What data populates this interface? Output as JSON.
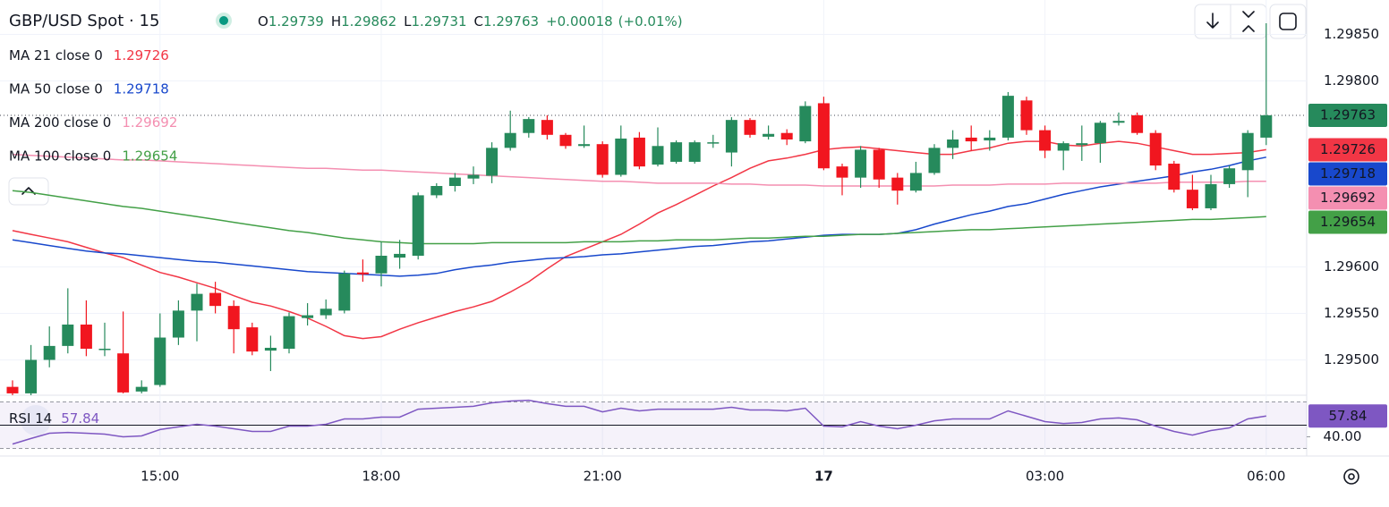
{
  "chart_data": {
    "type": "candlestick",
    "title": "GBP/USD Spot · 15",
    "ohlc_labels": [
      "O",
      "H",
      "L",
      "C"
    ],
    "change": "+0.00018",
    "change_pct": "(+0.01%)",
    "up_color": "#268a5c",
    "down_color": "#f1161f",
    "grid": true,
    "categories": [
      null,
      null,
      null,
      null,
      null,
      null,
      null,
      null,
      "15:00",
      null,
      null,
      null,
      null,
      null,
      null,
      null,
      null,
      null,
      null,
      null,
      "18:00",
      null,
      null,
      null,
      null,
      null,
      null,
      null,
      null,
      null,
      null,
      null,
      "21:00",
      null,
      null,
      null,
      null,
      null,
      null,
      null,
      null,
      null,
      null,
      null,
      "17",
      null,
      null,
      null,
      null,
      null,
      null,
      null,
      null,
      null,
      null,
      null,
      "03:00",
      null,
      null,
      null,
      null,
      null,
      null,
      null,
      null,
      null,
      null,
      null,
      "06:00"
    ],
    "open": [
      1.29471,
      1.29464,
      1.295,
      1.29515,
      1.29538,
      1.29512,
      1.29507,
      1.29466,
      1.29473,
      1.29524,
      1.29553,
      1.29572,
      1.29558,
      1.29535,
      1.2951,
      1.29512,
      1.29545,
      1.29548,
      1.29553,
      1.29594,
      1.29593,
      1.2961,
      1.29612,
      1.29677,
      1.29687,
      1.29695,
      1.29698,
      1.29728,
      1.29744,
      1.29758,
      1.29742,
      1.2973,
      1.29732,
      1.29699,
      1.29739,
      1.2971,
      1.29713,
      1.29713,
      1.29733,
      1.29723,
      1.29758,
      1.2974,
      1.29744,
      1.29735,
      1.29776,
      1.29708,
      1.29696,
      1.29726,
      1.29696,
      1.29682,
      1.29701,
      1.29728,
      1.29739,
      1.29736,
      1.29739,
      1.29779,
      1.29747,
      1.29725,
      1.29731,
      1.29733,
      1.29755,
      1.29763,
      1.29744,
      1.29711,
      1.29683,
      1.29663,
      1.29689,
      1.29704,
      1.29739
    ],
    "high": [
      1.29478,
      1.29516,
      1.29536,
      1.29577,
      1.29564,
      1.2954,
      1.29552,
      1.29478,
      1.2955,
      1.29564,
      1.29582,
      1.29584,
      1.29564,
      1.2954,
      1.29526,
      1.29551,
      1.29561,
      1.29565,
      1.29596,
      1.29608,
      1.29627,
      1.29629,
      1.2968,
      1.2969,
      1.29701,
      1.29708,
      1.29734,
      1.29768,
      1.29761,
      1.29763,
      1.29744,
      1.29752,
      1.29735,
      1.29752,
      1.29745,
      1.2975,
      1.29736,
      1.29736,
      1.29742,
      1.29761,
      1.2976,
      1.29752,
      1.29748,
      1.29778,
      1.29783,
      1.29711,
      1.2973,
      1.29728,
      1.29701,
      1.29713,
      1.29732,
      1.29747,
      1.29752,
      1.29747,
      1.29788,
      1.29783,
      1.29752,
      1.29735,
      1.29752,
      1.29757,
      1.29766,
      1.29766,
      1.29747,
      1.29714,
      1.29699,
      1.29699,
      1.29709,
      1.29747,
      1.29862
    ],
    "low": [
      1.29462,
      1.29462,
      1.29492,
      1.29507,
      1.29504,
      1.29504,
      1.29464,
      1.29464,
      1.29471,
      1.29516,
      1.2952,
      1.2955,
      1.29507,
      1.29505,
      1.29488,
      1.29507,
      1.29537,
      1.29544,
      1.2955,
      1.29584,
      1.29579,
      1.29598,
      1.29608,
      1.29674,
      1.29681,
      1.29689,
      1.2969,
      1.29725,
      1.29739,
      1.29737,
      1.29727,
      1.29728,
      1.29696,
      1.29697,
      1.29705,
      1.29708,
      1.29711,
      1.29711,
      1.29728,
      1.29708,
      1.29739,
      1.29737,
      1.29731,
      1.29733,
      1.29704,
      1.29677,
      1.29685,
      1.29685,
      1.29667,
      1.2968,
      1.29699,
      1.29716,
      1.29725,
      1.29725,
      1.29736,
      1.29742,
      1.29717,
      1.29704,
      1.29714,
      1.29712,
      1.29752,
      1.29742,
      1.29704,
      1.2968,
      1.29661,
      1.29661,
      1.29685,
      1.29675,
      1.29731
    ],
    "close": [
      1.29464,
      1.295,
      1.29515,
      1.29538,
      1.29512,
      1.29512,
      1.29465,
      1.29471,
      1.29524,
      1.29553,
      1.29571,
      1.29558,
      1.29533,
      1.29509,
      1.29513,
      1.29547,
      1.29548,
      1.29555,
      1.29593,
      1.29592,
      1.29612,
      1.29614,
      1.29677,
      1.29687,
      1.29696,
      1.29699,
      1.29728,
      1.29744,
      1.29759,
      1.29742,
      1.2973,
      1.29732,
      1.29699,
      1.29738,
      1.29708,
      1.2973,
      1.29734,
      1.29734,
      1.29734,
      1.29758,
      1.29742,
      1.29743,
      1.29737,
      1.29773,
      1.29706,
      1.29696,
      1.29726,
      1.29694,
      1.29682,
      1.29701,
      1.29728,
      1.29737,
      1.29735,
      1.29739,
      1.29784,
      1.29747,
      1.29725,
      1.29733,
      1.29733,
      1.29755,
      1.29757,
      1.29744,
      1.29709,
      1.29683,
      1.29663,
      1.29689,
      1.29706,
      1.29744,
      1.29763
    ],
    "series": [
      {
        "name": "MA 21 close 0",
        "color": "#f23645",
        "values": [
          1.29639,
          1.29635,
          1.29631,
          1.29627,
          1.29621,
          1.29615,
          1.2961,
          1.29602,
          1.29594,
          1.29589,
          1.29583,
          1.29577,
          1.29569,
          1.29562,
          1.29558,
          1.29552,
          1.29545,
          1.29536,
          1.29526,
          1.29523,
          1.29525,
          1.29533,
          1.2954,
          1.29546,
          1.29552,
          1.29557,
          1.29563,
          1.29573,
          1.29584,
          1.29598,
          1.29611,
          1.29619,
          1.29627,
          1.29635,
          1.29646,
          1.29658,
          1.29667,
          1.29677,
          1.29687,
          1.29696,
          1.29706,
          1.29714,
          1.29717,
          1.29721,
          1.29726,
          1.29728,
          1.29729,
          1.29727,
          1.29725,
          1.29723,
          1.29721,
          1.29721,
          1.29725,
          1.29728,
          1.29733,
          1.29735,
          1.29735,
          1.29731,
          1.2973,
          1.29733,
          1.29735,
          1.29733,
          1.29729,
          1.29725,
          1.29721,
          1.29721,
          1.29722,
          1.29723,
          1.29726
        ]
      },
      {
        "name": "MA 50 close 0",
        "color": "#1848cc",
        "values": [
          1.29629,
          1.29626,
          1.29623,
          1.2962,
          1.29617,
          1.29615,
          1.29614,
          1.29612,
          1.2961,
          1.29608,
          1.29606,
          1.29605,
          1.29603,
          1.29601,
          1.29599,
          1.29597,
          1.29595,
          1.29594,
          1.29593,
          1.29592,
          1.29591,
          1.2959,
          1.29591,
          1.29593,
          1.29597,
          1.296,
          1.29602,
          1.29605,
          1.29607,
          1.29609,
          1.2961,
          1.29611,
          1.29613,
          1.29614,
          1.29616,
          1.29618,
          1.2962,
          1.29622,
          1.29623,
          1.29625,
          1.29627,
          1.29628,
          1.2963,
          1.29632,
          1.29634,
          1.29635,
          1.29635,
          1.29635,
          1.29636,
          1.2964,
          1.29646,
          1.29651,
          1.29656,
          1.2966,
          1.29665,
          1.29668,
          1.29673,
          1.29678,
          1.29682,
          1.29686,
          1.29689,
          1.29692,
          1.29695,
          1.29698,
          1.29702,
          1.29705,
          1.29709,
          1.29714,
          1.29718
        ]
      },
      {
        "name": "MA 200 close 0",
        "color": "#f48fb1",
        "values": [
          1.29721,
          1.2972,
          1.29719,
          1.29718,
          1.29717,
          1.29716,
          1.29715,
          1.29715,
          1.29714,
          1.29713,
          1.29712,
          1.29711,
          1.2971,
          1.29709,
          1.29708,
          1.29707,
          1.29706,
          1.29706,
          1.29705,
          1.29704,
          1.29704,
          1.29703,
          1.29702,
          1.29701,
          1.297,
          1.29699,
          1.29698,
          1.29697,
          1.29696,
          1.29695,
          1.29694,
          1.29693,
          1.29692,
          1.29692,
          1.29691,
          1.2969,
          1.2969,
          1.2969,
          1.2969,
          1.29689,
          1.29689,
          1.29688,
          1.29688,
          1.29688,
          1.29687,
          1.29687,
          1.29687,
          1.29687,
          1.29687,
          1.29687,
          1.29687,
          1.29688,
          1.29688,
          1.29688,
          1.29689,
          1.29689,
          1.29689,
          1.2969,
          1.2969,
          1.2969,
          1.2969,
          1.2969,
          1.2969,
          1.29691,
          1.29691,
          1.29691,
          1.29691,
          1.29692,
          1.29692
        ]
      },
      {
        "name": "MA 100 close 0",
        "color": "#43a047",
        "values": [
          1.29682,
          1.2968,
          1.29677,
          1.29674,
          1.29671,
          1.29668,
          1.29665,
          1.29663,
          1.2966,
          1.29657,
          1.29654,
          1.29651,
          1.29648,
          1.29645,
          1.29642,
          1.29639,
          1.29637,
          1.29634,
          1.29631,
          1.29629,
          1.29627,
          1.29626,
          1.29625,
          1.29625,
          1.29625,
          1.29625,
          1.29626,
          1.29626,
          1.29626,
          1.29626,
          1.29626,
          1.29627,
          1.29627,
          1.29627,
          1.29628,
          1.29628,
          1.29629,
          1.29629,
          1.29629,
          1.2963,
          1.29631,
          1.29631,
          1.29632,
          1.29633,
          1.29633,
          1.29634,
          1.29635,
          1.29635,
          1.29636,
          1.29637,
          1.29638,
          1.29639,
          1.2964,
          1.2964,
          1.29641,
          1.29642,
          1.29643,
          1.29644,
          1.29645,
          1.29646,
          1.29647,
          1.29648,
          1.29649,
          1.2965,
          1.29651,
          1.29651,
          1.29652,
          1.29653,
          1.29654
        ]
      }
    ],
    "ylim": [
      1.29462,
      1.29887
    ],
    "yticks": [
      {
        "value": 1.2985,
        "label": "1.29850"
      },
      {
        "value": 1.298,
        "label": "1.29800"
      },
      {
        "value": 1.296,
        "label": "1.29600"
      },
      {
        "value": 1.2955,
        "label": "1.29550"
      },
      {
        "value": 1.295,
        "label": "1.29500"
      }
    ],
    "rsi": {
      "name": "RSI 14",
      "color": "#7e57c2",
      "values": [
        33.8,
        38.5,
        43.1,
        43.8,
        43.1,
        42.3,
        40,
        40.8,
        46.2,
        48.5,
        50.8,
        49.2,
        46.9,
        44.6,
        44.6,
        49.2,
        49.2,
        50.8,
        55.4,
        55.4,
        56.9,
        56.9,
        63.8,
        64.6,
        65.4,
        66.2,
        69.2,
        70.8,
        71.5,
        68.5,
        66.2,
        66.2,
        61.5,
        64.6,
        62.3,
        63.8,
        63.8,
        63.8,
        63.8,
        65.4,
        63.1,
        63.1,
        62.3,
        64.6,
        49.2,
        48.5,
        53.1,
        49.2,
        46.9,
        50,
        53.8,
        55.4,
        55.4,
        55.4,
        62.3,
        57.7,
        53.1,
        51.5,
        52.3,
        55.4,
        56.2,
        54.6,
        49.2,
        44.6,
        41.5,
        45.4,
        47.7,
        55.4,
        57.84
      ],
      "ylim": [
        25,
        75
      ],
      "yticks": [
        {
          "value": 40,
          "label": "40.00"
        }
      ],
      "levels": [
        70,
        50,
        30
      ]
    }
  }
}
